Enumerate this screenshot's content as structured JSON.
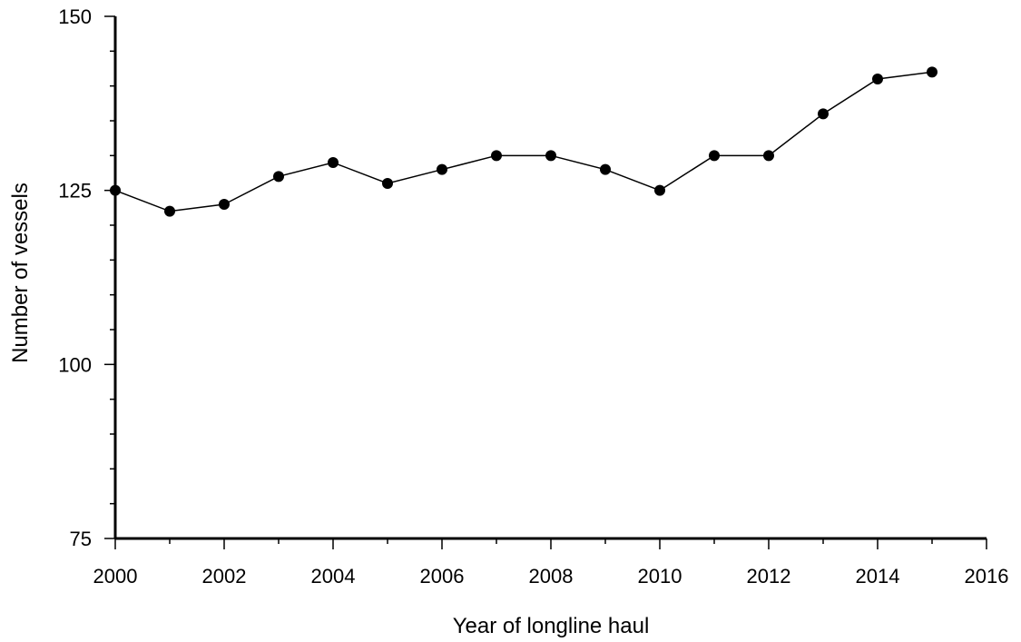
{
  "chart_data": {
    "type": "line",
    "title": "",
    "xlabel": "Year of longline haul",
    "ylabel": "Number of vessels",
    "xlim": [
      2000,
      2016
    ],
    "ylim": [
      75,
      150
    ],
    "x_major_ticks": [
      2000,
      2002,
      2004,
      2006,
      2008,
      2010,
      2012,
      2014,
      2016
    ],
    "x_major_tick_labels": [
      "2000",
      "2002",
      "2004",
      "2006",
      "2008",
      "2010",
      "2012",
      "2014",
      "2016"
    ],
    "x_minor_ticks": [
      2001,
      2003,
      2005,
      2007,
      2009,
      2011,
      2013,
      2015
    ],
    "y_major_ticks": [
      75,
      100,
      125,
      150
    ],
    "y_major_tick_labels": [
      "75",
      "100",
      "125",
      "150"
    ],
    "y_minor_ticks": [
      80,
      85,
      90,
      95,
      105,
      110,
      115,
      120,
      130,
      135,
      140,
      145
    ],
    "grid": false,
    "legend": "none",
    "color": "#000000",
    "series": [
      {
        "x": [
          2000,
          2001,
          2002,
          2003,
          2004,
          2005,
          2006,
          2007,
          2008,
          2009,
          2010,
          2011,
          2012,
          2013,
          2014,
          2015
        ],
        "values": [
          125,
          122,
          123,
          127,
          129,
          126,
          128,
          130,
          130,
          128,
          125,
          130,
          130,
          136,
          141,
          142
        ]
      }
    ]
  }
}
